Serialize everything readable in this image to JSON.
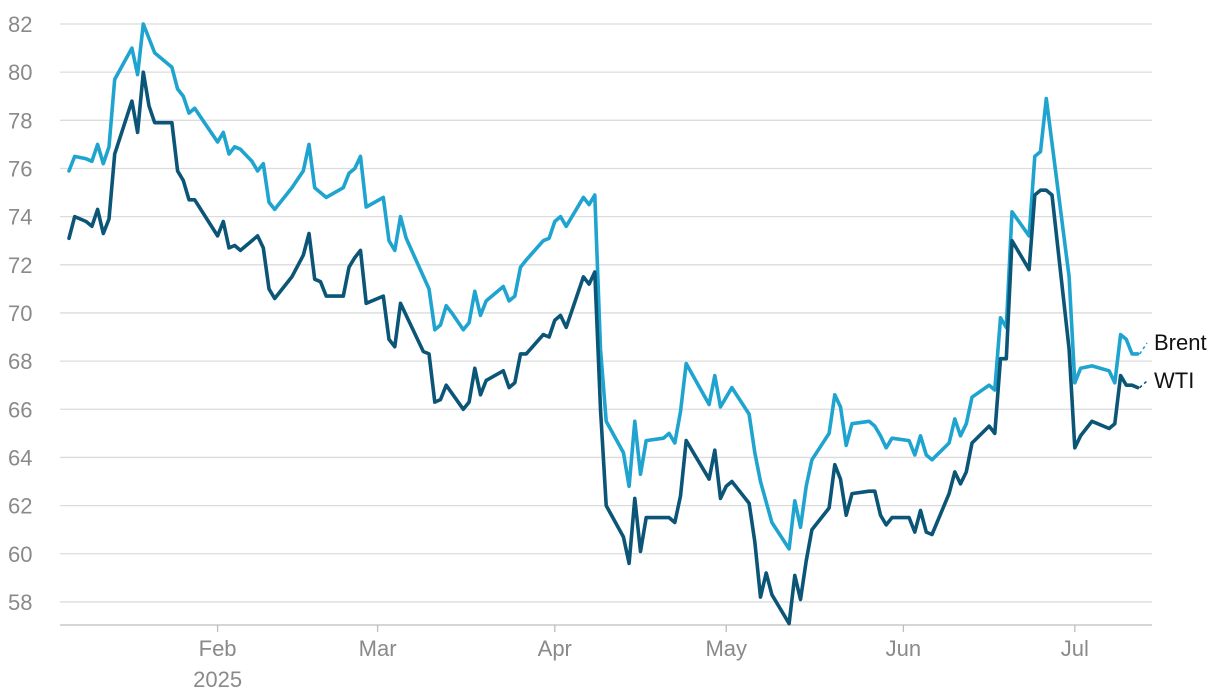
{
  "chart_data": {
    "type": "line",
    "title": "",
    "xlabel": "",
    "ylabel": "",
    "ylim": [
      57,
      82.5
    ],
    "xlim": [
      "2025-01-06",
      "2025-07-09"
    ],
    "grid": "horizontal",
    "legend": "inline-right",
    "y_ticks": [
      "58",
      "60",
      "62",
      "64",
      "66",
      "68",
      "70",
      "72",
      "74",
      "76",
      "78",
      "80",
      "82"
    ],
    "x_ticks": [
      {
        "date": "2025-02-01",
        "label": "Feb",
        "sublabel": "2025"
      },
      {
        "date": "2025-03-01",
        "label": "Mar",
        "sublabel": ""
      },
      {
        "date": "2025-04-01",
        "label": "Apr",
        "sublabel": ""
      },
      {
        "date": "2025-05-01",
        "label": "May",
        "sublabel": ""
      },
      {
        "date": "2025-06-01",
        "label": "Jun",
        "sublabel": ""
      },
      {
        "date": "2025-07-01",
        "label": "Jul",
        "sublabel": ""
      }
    ],
    "series": [
      {
        "name": "Brent",
        "color": "#1ea4cf",
        "points": [
          [
            "2025-01-06",
            75.9
          ],
          [
            "2025-01-07",
            76.5
          ],
          [
            "2025-01-09",
            76.4
          ],
          [
            "2025-01-10",
            76.3
          ],
          [
            "2025-01-11",
            77.0
          ],
          [
            "2025-01-12",
            76.2
          ],
          [
            "2025-01-13",
            76.9
          ],
          [
            "2025-01-14",
            79.7
          ],
          [
            "2025-01-17",
            81.0
          ],
          [
            "2025-01-18",
            79.9
          ],
          [
            "2025-01-19",
            82.0
          ],
          [
            "2025-01-20",
            81.4
          ],
          [
            "2025-01-21",
            80.8
          ],
          [
            "2025-01-24",
            80.2
          ],
          [
            "2025-01-25",
            79.3
          ],
          [
            "2025-01-26",
            79.0
          ],
          [
            "2025-01-27",
            78.3
          ],
          [
            "2025-01-28",
            78.5
          ],
          [
            "2025-02-01",
            77.1
          ],
          [
            "2025-02-02",
            77.5
          ],
          [
            "2025-02-03",
            76.6
          ],
          [
            "2025-02-04",
            76.9
          ],
          [
            "2025-02-05",
            76.8
          ],
          [
            "2025-02-07",
            76.3
          ],
          [
            "2025-02-08",
            75.9
          ],
          [
            "2025-02-09",
            76.2
          ],
          [
            "2025-02-10",
            74.6
          ],
          [
            "2025-02-11",
            74.3
          ],
          [
            "2025-02-14",
            75.2
          ],
          [
            "2025-02-16",
            75.9
          ],
          [
            "2025-02-17",
            77.0
          ],
          [
            "2025-02-18",
            75.2
          ],
          [
            "2025-02-19",
            75.0
          ],
          [
            "2025-02-20",
            74.8
          ],
          [
            "2025-02-23",
            75.2
          ],
          [
            "2025-02-24",
            75.8
          ],
          [
            "2025-02-25",
            76.0
          ],
          [
            "2025-02-26",
            76.5
          ],
          [
            "2025-02-27",
            74.4
          ],
          [
            "2025-03-02",
            74.8
          ],
          [
            "2025-03-03",
            73.0
          ],
          [
            "2025-03-04",
            72.6
          ],
          [
            "2025-03-05",
            74.0
          ],
          [
            "2025-03-06",
            73.1
          ],
          [
            "2025-03-10",
            71.0
          ],
          [
            "2025-03-11",
            69.3
          ],
          [
            "2025-03-12",
            69.5
          ],
          [
            "2025-03-13",
            70.3
          ],
          [
            "2025-03-14",
            70.0
          ],
          [
            "2025-03-16",
            69.3
          ],
          [
            "2025-03-17",
            69.6
          ],
          [
            "2025-03-18",
            70.9
          ],
          [
            "2025-03-19",
            69.9
          ],
          [
            "2025-03-20",
            70.5
          ],
          [
            "2025-03-23",
            71.1
          ],
          [
            "2025-03-24",
            70.5
          ],
          [
            "2025-03-25",
            70.7
          ],
          [
            "2025-03-26",
            71.9
          ],
          [
            "2025-03-27",
            72.2
          ],
          [
            "2025-03-30",
            73.0
          ],
          [
            "2025-03-31",
            73.1
          ],
          [
            "2025-04-01",
            73.8
          ],
          [
            "2025-04-02",
            74.0
          ],
          [
            "2025-04-03",
            73.6
          ],
          [
            "2025-04-06",
            74.8
          ],
          [
            "2025-04-07",
            74.5
          ],
          [
            "2025-04-08",
            74.9
          ],
          [
            "2025-04-09",
            68.5
          ],
          [
            "2025-04-10",
            65.5
          ],
          [
            "2025-04-13",
            64.2
          ],
          [
            "2025-04-14",
            62.8
          ],
          [
            "2025-04-15",
            65.5
          ],
          [
            "2025-04-16",
            63.3
          ],
          [
            "2025-04-17",
            64.7
          ],
          [
            "2025-04-20",
            64.8
          ],
          [
            "2025-04-21",
            65.0
          ],
          [
            "2025-04-22",
            64.6
          ],
          [
            "2025-04-23",
            65.9
          ],
          [
            "2025-04-24",
            67.9
          ],
          [
            "2025-04-28",
            66.2
          ],
          [
            "2025-04-29",
            67.4
          ],
          [
            "2025-04-30",
            66.1
          ],
          [
            "2025-05-01",
            66.5
          ],
          [
            "2025-05-02",
            66.9
          ],
          [
            "2025-05-05",
            65.8
          ],
          [
            "2025-05-06",
            64.2
          ],
          [
            "2025-05-07",
            63.0
          ],
          [
            "2025-05-09",
            61.3
          ],
          [
            "2025-05-12",
            60.2
          ],
          [
            "2025-05-13",
            62.2
          ],
          [
            "2025-05-14",
            61.1
          ],
          [
            "2025-05-15",
            62.8
          ],
          [
            "2025-05-16",
            63.9
          ],
          [
            "2025-05-19",
            65.0
          ],
          [
            "2025-05-20",
            66.6
          ],
          [
            "2025-05-21",
            66.1
          ],
          [
            "2025-05-22",
            64.5
          ],
          [
            "2025-05-23",
            65.4
          ],
          [
            "2025-05-26",
            65.5
          ],
          [
            "2025-05-27",
            65.3
          ],
          [
            "2025-05-28",
            64.9
          ],
          [
            "2025-05-29",
            64.4
          ],
          [
            "2025-05-30",
            64.8
          ],
          [
            "2025-06-02",
            64.7
          ],
          [
            "2025-06-03",
            64.1
          ],
          [
            "2025-06-04",
            64.9
          ],
          [
            "2025-06-05",
            64.1
          ],
          [
            "2025-06-06",
            63.9
          ],
          [
            "2025-06-09",
            64.6
          ],
          [
            "2025-06-10",
            65.6
          ],
          [
            "2025-06-11",
            64.9
          ],
          [
            "2025-06-12",
            65.4
          ],
          [
            "2025-06-13",
            66.5
          ],
          [
            "2025-06-16",
            67.0
          ],
          [
            "2025-06-17",
            66.8
          ],
          [
            "2025-06-18",
            69.8
          ],
          [
            "2025-06-19",
            69.4
          ],
          [
            "2025-06-20",
            74.2
          ],
          [
            "2025-06-23",
            73.2
          ],
          [
            "2025-06-24",
            76.5
          ],
          [
            "2025-06-25",
            76.7
          ],
          [
            "2025-06-26",
            78.9
          ],
          [
            "2025-06-30",
            71.5
          ],
          [
            "2025-07-01",
            67.1
          ],
          [
            "2025-07-02",
            67.7
          ],
          [
            "2025-07-04",
            67.8
          ],
          [
            "2025-07-07",
            67.6
          ],
          [
            "2025-07-08",
            67.1
          ],
          [
            "2025-07-09",
            69.1
          ],
          [
            "2025-07-10",
            68.9
          ],
          [
            "2025-07-11",
            68.3
          ],
          [
            "2025-07-12",
            68.3
          ]
        ]
      },
      {
        "name": "WTI",
        "color": "#0b5577",
        "points": [
          [
            "2025-01-06",
            73.1
          ],
          [
            "2025-01-07",
            74.0
          ],
          [
            "2025-01-09",
            73.8
          ],
          [
            "2025-01-10",
            73.6
          ],
          [
            "2025-01-11",
            74.3
          ],
          [
            "2025-01-12",
            73.3
          ],
          [
            "2025-01-13",
            73.9
          ],
          [
            "2025-01-14",
            76.6
          ],
          [
            "2025-01-17",
            78.8
          ],
          [
            "2025-01-18",
            77.5
          ],
          [
            "2025-01-19",
            80.0
          ],
          [
            "2025-01-20",
            78.6
          ],
          [
            "2025-01-21",
            77.9
          ],
          [
            "2025-01-24",
            77.9
          ],
          [
            "2025-01-25",
            75.9
          ],
          [
            "2025-01-26",
            75.5
          ],
          [
            "2025-01-27",
            74.7
          ],
          [
            "2025-01-28",
            74.7
          ],
          [
            "2025-02-01",
            73.2
          ],
          [
            "2025-02-02",
            73.8
          ],
          [
            "2025-02-03",
            72.7
          ],
          [
            "2025-02-04",
            72.8
          ],
          [
            "2025-02-05",
            72.6
          ],
          [
            "2025-02-07",
            73.0
          ],
          [
            "2025-02-08",
            73.2
          ],
          [
            "2025-02-09",
            72.7
          ],
          [
            "2025-02-10",
            71.0
          ],
          [
            "2025-02-11",
            70.6
          ],
          [
            "2025-02-14",
            71.5
          ],
          [
            "2025-02-16",
            72.4
          ],
          [
            "2025-02-17",
            73.3
          ],
          [
            "2025-02-18",
            71.4
          ],
          [
            "2025-02-19",
            71.3
          ],
          [
            "2025-02-20",
            70.7
          ],
          [
            "2025-02-23",
            70.7
          ],
          [
            "2025-02-24",
            71.9
          ],
          [
            "2025-02-25",
            72.3
          ],
          [
            "2025-02-26",
            72.6
          ],
          [
            "2025-02-27",
            70.4
          ],
          [
            "2025-03-02",
            70.7
          ],
          [
            "2025-03-03",
            68.9
          ],
          [
            "2025-03-04",
            68.6
          ],
          [
            "2025-03-05",
            70.4
          ],
          [
            "2025-03-06",
            69.9
          ],
          [
            "2025-03-09",
            68.4
          ],
          [
            "2025-03-10",
            68.3
          ],
          [
            "2025-03-11",
            66.3
          ],
          [
            "2025-03-12",
            66.4
          ],
          [
            "2025-03-13",
            67.0
          ],
          [
            "2025-03-16",
            66.0
          ],
          [
            "2025-03-17",
            66.3
          ],
          [
            "2025-03-18",
            67.7
          ],
          [
            "2025-03-19",
            66.6
          ],
          [
            "2025-03-20",
            67.2
          ],
          [
            "2025-03-23",
            67.6
          ],
          [
            "2025-03-24",
            66.9
          ],
          [
            "2025-03-25",
            67.1
          ],
          [
            "2025-03-26",
            68.3
          ],
          [
            "2025-03-27",
            68.3
          ],
          [
            "2025-03-30",
            69.1
          ],
          [
            "2025-03-31",
            69.0
          ],
          [
            "2025-04-01",
            69.7
          ],
          [
            "2025-04-02",
            69.9
          ],
          [
            "2025-04-03",
            69.4
          ],
          [
            "2025-04-06",
            71.5
          ],
          [
            "2025-04-07",
            71.2
          ],
          [
            "2025-04-08",
            71.7
          ],
          [
            "2025-04-09",
            66.0
          ],
          [
            "2025-04-10",
            62.0
          ],
          [
            "2025-04-13",
            60.7
          ],
          [
            "2025-04-14",
            59.6
          ],
          [
            "2025-04-15",
            62.3
          ],
          [
            "2025-04-16",
            60.1
          ],
          [
            "2025-04-17",
            61.5
          ],
          [
            "2025-04-20",
            61.5
          ],
          [
            "2025-04-21",
            61.5
          ],
          [
            "2025-04-22",
            61.3
          ],
          [
            "2025-04-23",
            62.4
          ],
          [
            "2025-04-24",
            64.7
          ],
          [
            "2025-04-28",
            63.1
          ],
          [
            "2025-04-29",
            64.3
          ],
          [
            "2025-04-30",
            62.3
          ],
          [
            "2025-05-01",
            62.8
          ],
          [
            "2025-05-02",
            63.0
          ],
          [
            "2025-05-05",
            62.1
          ],
          [
            "2025-05-06",
            60.5
          ],
          [
            "2025-05-07",
            58.2
          ],
          [
            "2025-05-08",
            59.2
          ],
          [
            "2025-05-09",
            58.3
          ],
          [
            "2025-05-12",
            57.1
          ],
          [
            "2025-05-13",
            59.1
          ],
          [
            "2025-05-14",
            58.1
          ],
          [
            "2025-05-15",
            59.7
          ],
          [
            "2025-05-16",
            61.0
          ],
          [
            "2025-05-19",
            61.9
          ],
          [
            "2025-05-20",
            63.7
          ],
          [
            "2025-05-21",
            63.1
          ],
          [
            "2025-05-22",
            61.6
          ],
          [
            "2025-05-23",
            62.5
          ],
          [
            "2025-05-26",
            62.6
          ],
          [
            "2025-05-27",
            62.6
          ],
          [
            "2025-05-28",
            61.6
          ],
          [
            "2025-05-29",
            61.2
          ],
          [
            "2025-05-30",
            61.5
          ],
          [
            "2025-06-02",
            61.5
          ],
          [
            "2025-06-03",
            60.9
          ],
          [
            "2025-06-04",
            61.8
          ],
          [
            "2025-06-05",
            60.9
          ],
          [
            "2025-06-06",
            60.8
          ],
          [
            "2025-06-09",
            62.5
          ],
          [
            "2025-06-10",
            63.4
          ],
          [
            "2025-06-11",
            62.9
          ],
          [
            "2025-06-12",
            63.4
          ],
          [
            "2025-06-13",
            64.6
          ],
          [
            "2025-06-16",
            65.3
          ],
          [
            "2025-06-17",
            65.0
          ],
          [
            "2025-06-18",
            68.1
          ],
          [
            "2025-06-19",
            68.1
          ],
          [
            "2025-06-20",
            73.0
          ],
          [
            "2025-06-23",
            71.8
          ],
          [
            "2025-06-24",
            74.9
          ],
          [
            "2025-06-25",
            75.1
          ],
          [
            "2025-06-26",
            75.1
          ],
          [
            "2025-06-27",
            74.9
          ],
          [
            "2025-06-30",
            68.5
          ],
          [
            "2025-07-01",
            64.4
          ],
          [
            "2025-07-02",
            64.9
          ],
          [
            "2025-07-04",
            65.5
          ],
          [
            "2025-07-07",
            65.2
          ],
          [
            "2025-07-08",
            65.4
          ],
          [
            "2025-07-09",
            67.4
          ],
          [
            "2025-07-10",
            67.0
          ],
          [
            "2025-07-11",
            67.0
          ],
          [
            "2025-07-12",
            66.9
          ]
        ]
      }
    ]
  }
}
